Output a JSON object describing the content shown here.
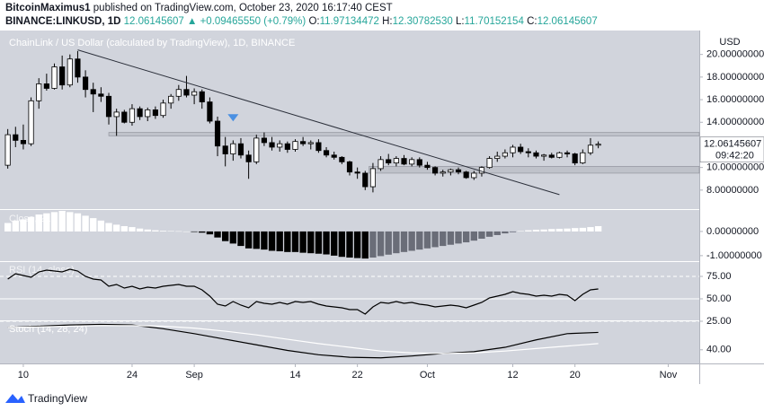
{
  "header": {
    "author": "BitcoinMaximus1",
    "published": "published on TradingView.com, October 23, 2020 16:17:40 CEST",
    "symbol": "BINANCE:LINKUSD, 1D",
    "last": "12.06145607",
    "arrow": "▲",
    "change": "+0.09465550 (+0.79%)",
    "ohlc": [
      {
        "label": "O:",
        "value": "11.97134472"
      },
      {
        "label": "H:",
        "value": "12.30782530"
      },
      {
        "label": "L:",
        "value": "11.70152154"
      },
      {
        "label": "C:",
        "value": "12.06145607"
      }
    ]
  },
  "footer": {
    "brand": "TradingView"
  },
  "chart_data": [
    {
      "type": "candlestick",
      "title": "ChainLink / US Dollar (calculated by TradingView), 1D, BINANCE",
      "y_axis_label": "USD",
      "countdown": "09:42:20",
      "up_color": "#ffffff",
      "down_color": "#000000",
      "xlim": [
        -1,
        89
      ],
      "xticks": [
        {
          "value": 2,
          "label": "10"
        },
        {
          "value": 16,
          "label": "24"
        },
        {
          "value": 24,
          "label": "Sep"
        },
        {
          "value": 37,
          "label": "14"
        },
        {
          "value": 45,
          "label": "22"
        },
        {
          "value": 54,
          "label": "Oct"
        },
        {
          "value": 65,
          "label": "12"
        },
        {
          "value": 73,
          "label": "20"
        },
        {
          "value": 85,
          "label": "Nov"
        }
      ],
      "ylim": [
        6.4,
        21.8
      ],
      "yticks": [
        {
          "value": 8,
          "label": "8.00000000"
        },
        {
          "value": 10,
          "label": "10.00000000"
        },
        {
          "value": 12,
          "label": "12.00000000"
        },
        {
          "value": 14,
          "label": "14.00000000"
        },
        {
          "value": 16,
          "label": "16.00000000"
        },
        {
          "value": 18,
          "label": "18.00000000"
        },
        {
          "value": 20,
          "label": "20.00000000"
        }
      ],
      "open": [
        10.2,
        12.9,
        12.4,
        12.1,
        15.9,
        17.4,
        17.0,
        18.9,
        17.3,
        19.6,
        18.0,
        16.9,
        16.5,
        16.3,
        14.5,
        14.9,
        14.0,
        15.2,
        14.5,
        15.1,
        14.6,
        15.7,
        16.3,
        16.9,
        16.4,
        16.7,
        15.8,
        14.1,
        11.9,
        11.2,
        12.1,
        11.1,
        10.5,
        12.6,
        12.2,
        11.8,
        12.1,
        11.6,
        12.3,
        12.1,
        12.2,
        11.5,
        11.1,
        10.9,
        10.5,
        9.6,
        9.5,
        8.3,
        9.9,
        10.7,
        10.4,
        10.8,
        10.3,
        10.7,
        10.2,
        10.0,
        9.5,
        9.6,
        9.8,
        9.6,
        9.1,
        9.5,
        10.0,
        10.8,
        11.0,
        11.3,
        11.8,
        11.4,
        11.3,
        11.0,
        11.1,
        10.9,
        11.3,
        11.2,
        10.4,
        11.3,
        11.97134472
      ],
      "high": [
        13.4,
        13.6,
        13.8,
        16.2,
        17.9,
        18.3,
        19.2,
        19.9,
        20.0,
        20.3,
        18.6,
        17.5,
        17.1,
        16.6,
        15.2,
        15.1,
        15.6,
        15.4,
        15.3,
        15.4,
        16.0,
        16.5,
        17.3,
        18.1,
        17.0,
        16.9,
        16.2,
        14.5,
        12.7,
        12.4,
        12.6,
        11.5,
        12.9,
        13.1,
        12.7,
        12.4,
        12.3,
        12.5,
        12.7,
        12.4,
        12.5,
        11.8,
        11.4,
        11.0,
        10.6,
        10.0,
        9.7,
        10.4,
        11.0,
        11.2,
        11.0,
        11.1,
        10.9,
        10.9,
        10.5,
        10.1,
        9.8,
        9.9,
        10.0,
        9.7,
        9.7,
        10.1,
        11.0,
        11.4,
        11.6,
        12.0,
        12.1,
        11.7,
        11.5,
        11.2,
        11.3,
        11.4,
        11.5,
        11.3,
        11.6,
        12.6,
        12.3078253
      ],
      "low": [
        9.9,
        11.8,
        11.6,
        11.9,
        15.2,
        16.8,
        16.9,
        16.9,
        17.1,
        17.5,
        16.2,
        14.9,
        15.8,
        13.8,
        12.8,
        13.9,
        13.7,
        14.2,
        14.1,
        14.3,
        14.4,
        15.2,
        15.9,
        16.2,
        15.6,
        15.2,
        13.9,
        11.0,
        10.1,
        10.6,
        10.8,
        9.0,
        10.3,
        11.9,
        11.5,
        11.4,
        11.3,
        11.4,
        11.9,
        11.6,
        11.3,
        10.9,
        10.7,
        10.3,
        9.3,
        9.0,
        8.0,
        7.8,
        9.7,
        10.2,
        10.1,
        10.2,
        10.1,
        10.0,
        9.8,
        9.3,
        9.2,
        9.3,
        9.4,
        9.0,
        8.9,
        9.2,
        9.9,
        10.5,
        10.8,
        10.9,
        11.2,
        10.9,
        10.8,
        10.6,
        10.8,
        10.8,
        10.9,
        10.2,
        10.3,
        11.1,
        11.70152154
      ],
      "close": [
        12.9,
        12.4,
        12.1,
        15.9,
        17.4,
        17.0,
        18.9,
        17.3,
        19.6,
        18.0,
        16.9,
        16.5,
        16.3,
        14.5,
        14.9,
        14.0,
        15.2,
        14.5,
        15.1,
        14.6,
        15.7,
        16.3,
        16.9,
        16.4,
        16.7,
        15.8,
        14.1,
        11.9,
        11.2,
        12.1,
        11.1,
        10.5,
        12.6,
        12.2,
        11.8,
        12.1,
        11.6,
        12.3,
        12.1,
        12.2,
        11.5,
        11.1,
        10.9,
        10.5,
        9.6,
        9.5,
        8.3,
        9.9,
        10.7,
        10.4,
        10.8,
        10.3,
        10.7,
        10.2,
        10.0,
        9.5,
        9.6,
        9.8,
        9.6,
        9.1,
        9.5,
        10.0,
        10.8,
        11.0,
        11.3,
        11.8,
        11.4,
        11.3,
        11.0,
        11.1,
        10.9,
        11.3,
        11.2,
        10.4,
        11.3,
        11.97134472,
        12.06145607
      ],
      "trendline": {
        "x": [
          9,
          71
        ],
        "y": [
          20.4,
          7.6
        ],
        "color": "#2a2e39"
      },
      "zones": [
        {
          "x_start": 13,
          "range": [
            12.8,
            13.1
          ]
        },
        {
          "x_start": 46.5,
          "range": [
            9.5,
            10.1
          ]
        }
      ],
      "marker": {
        "x": 29,
        "y": 14.4,
        "color": "#4a90e2"
      }
    },
    {
      "type": "histogram",
      "title": "Close, 21",
      "color": "#ffffff",
      "negative_color": "#000000",
      "rising_negative_color": "#6a6d78",
      "ylim": [
        -1.19,
        0.85
      ],
      "yticks": [
        {
          "value": -1,
          "label": "-1.00000000"
        },
        {
          "value": 0,
          "label": "0.00000000"
        }
      ],
      "values": [
        0.35,
        0.45,
        0.5,
        0.6,
        0.7,
        0.75,
        0.8,
        0.85,
        0.8,
        0.75,
        0.65,
        0.55,
        0.45,
        0.35,
        0.28,
        0.22,
        0.18,
        0.12,
        0.08,
        0.05,
        0.03,
        0.02,
        0.01,
        0.0,
        -0.02,
        -0.05,
        -0.12,
        -0.25,
        -0.4,
        -0.5,
        -0.6,
        -0.7,
        -0.72,
        -0.75,
        -0.8,
        -0.82,
        -0.85,
        -0.85,
        -0.88,
        -0.9,
        -0.92,
        -0.95,
        -1.0,
        -1.05,
        -1.08,
        -1.1,
        -1.12,
        -1.08,
        -1.02,
        -0.96,
        -0.9,
        -0.85,
        -0.8,
        -0.75,
        -0.7,
        -0.65,
        -0.6,
        -0.55,
        -0.5,
        -0.45,
        -0.38,
        -0.3,
        -0.22,
        -0.15,
        -0.08,
        -0.03,
        0.02,
        0.05,
        0.07,
        0.08,
        0.1,
        0.11,
        0.12,
        0.14,
        0.15,
        0.18,
        0.22
      ]
    },
    {
      "type": "line",
      "title": "RSI (14, close)",
      "color": "#000000",
      "grid": true,
      "ylim": [
        25,
        91
      ],
      "yticks": [
        {
          "value": 25,
          "label": "25.00"
        },
        {
          "value": 50,
          "label": "50.00"
        },
        {
          "value": 75,
          "label": "75.00"
        }
      ],
      "values": [
        72,
        78,
        76,
        74,
        80,
        82,
        81,
        80,
        83,
        81,
        75,
        72,
        71,
        64,
        66,
        62,
        64,
        61,
        63,
        62,
        64,
        65,
        66,
        64,
        64,
        60,
        53,
        44,
        42,
        47,
        43,
        40,
        47,
        45,
        44,
        46,
        44,
        47,
        46,
        47,
        44,
        42,
        41,
        40,
        38,
        38,
        33,
        41,
        46,
        45,
        47,
        45,
        46,
        44,
        43,
        41,
        42,
        43,
        42,
        40,
        43,
        46,
        51,
        53,
        55,
        58,
        56,
        55,
        53,
        54,
        53,
        55,
        54,
        48,
        55,
        60,
        61
      ]
    },
    {
      "type": "line",
      "title": "Stoch (14, 28, 24)",
      "ylim": [
        18,
        86
      ],
      "yticks": [
        {
          "value": 40,
          "label": "40.00"
        }
      ],
      "x": [
        0,
        4,
        8,
        12,
        16,
        20,
        24,
        28,
        32,
        36,
        40,
        44,
        48,
        52,
        56,
        60,
        64,
        68,
        72,
        76
      ],
      "series": [
        {
          "color": "#000000",
          "values": [
            76,
            78,
            80,
            81,
            80,
            74,
            66,
            57,
            48,
            39,
            32,
            28,
            27,
            30,
            34,
            37,
            44,
            56,
            66,
            68
          ]
        },
        {
          "color": "#ffffff",
          "values": [
            76,
            77,
            78,
            79,
            79,
            78,
            75,
            70,
            64,
            57,
            50,
            44,
            38,
            35,
            34,
            35,
            38,
            42,
            46,
            50
          ]
        }
      ]
    }
  ]
}
